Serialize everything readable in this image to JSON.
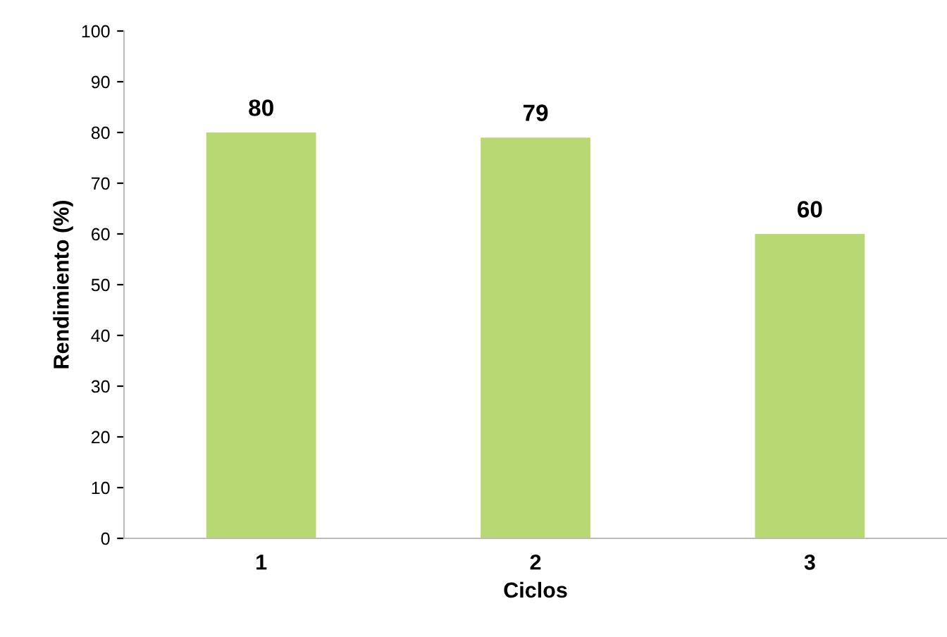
{
  "chart_data": {
    "type": "bar",
    "xlabel": "Ciclos",
    "ylabel": "Rendimiento (%)",
    "categories": [
      "1",
      "2",
      "3"
    ],
    "values": [
      80,
      79,
      60
    ],
    "color": "#b8d873",
    "ylim": [
      0,
      100
    ],
    "yticks": [
      0,
      10,
      20,
      30,
      40,
      50,
      60,
      70,
      80,
      90,
      100
    ],
    "data_labels": true,
    "grid": false
  }
}
